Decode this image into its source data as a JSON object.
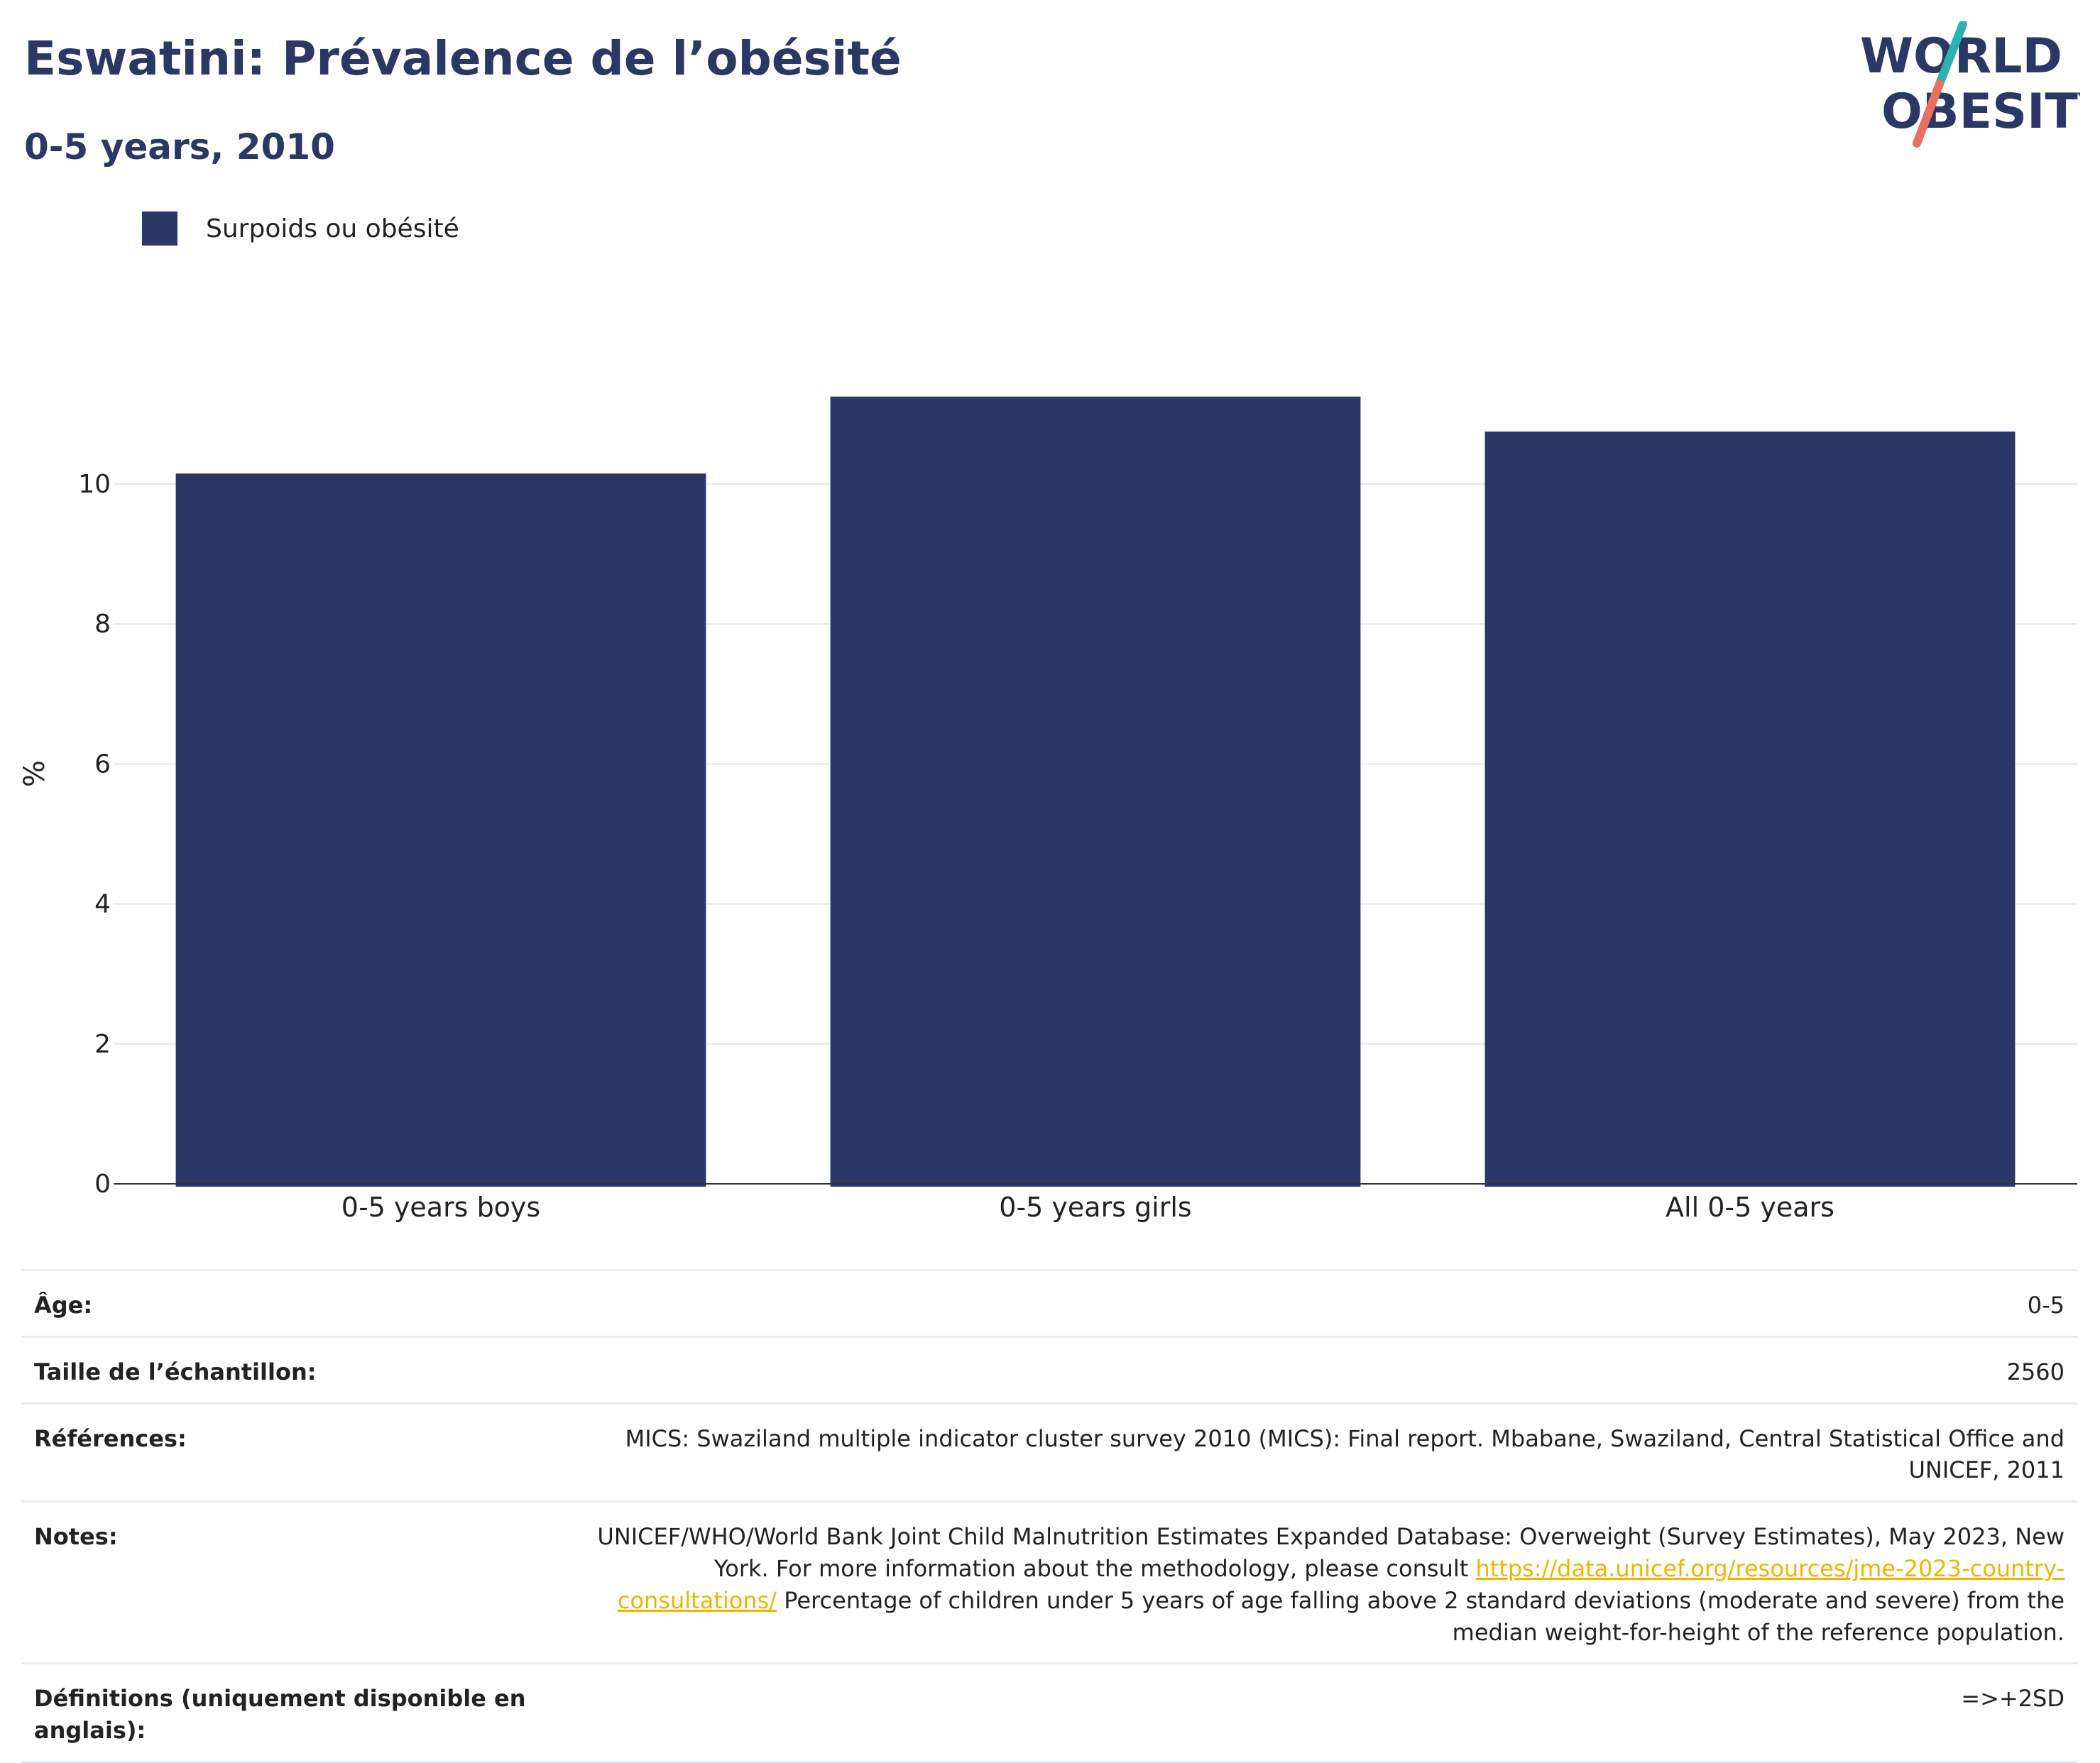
{
  "header": {
    "title": "Eswatini: Prévalence de l’obésité",
    "subtitle": "0-5 years, 2010"
  },
  "logo": {
    "line1": "WORLD",
    "line2": "OBESITY",
    "name": "world-obesity-logo"
  },
  "colors": {
    "bar": "#2b3764",
    "title": "#2b3764",
    "link": "#f0b400",
    "logo_teal": "#2bb3b1",
    "logo_coral": "#e8705c"
  },
  "chart_data": {
    "type": "bar",
    "categories": [
      "0-5 years boys",
      "0-5 years girls",
      "All 0-5 years"
    ],
    "series": [
      {
        "name": "Surpoids ou obésité",
        "values": [
          10.15,
          11.25,
          10.75
        ]
      }
    ],
    "ylabel": "%",
    "ylim": [
      0,
      11.6
    ],
    "yticks": [
      0,
      2,
      4,
      6,
      8,
      10
    ],
    "grid": true,
    "legend": "top-left"
  },
  "info": {
    "rows": [
      {
        "key": "Âge:",
        "value": "0-5"
      },
      {
        "key": "Taille de l’échantillon:",
        "value": "2560"
      },
      {
        "key": "Références:",
        "value": "MICS: Swaziland multiple indicator cluster survey 2010 (MICS): Final report. Mbabane, Swaziland, Central Statistical Office and UNICEF, 2011"
      },
      {
        "key": "Notes:",
        "value_before": "UNICEF/WHO/World Bank Joint Child Malnutrition Estimates Expanded Database: Overweight (Survey Estimates), May 2023, New York. For more information about the methodology, please consult ",
        "link": "https://data.unicef.org/resources/jme-2023-country-consultations/",
        "value_after": " Percentage of children under 5 years of age falling above 2 standard deviations (moderate and severe) from the median weight-for-height of the reference population."
      },
      {
        "key": "Définitions (uniquement disponible en anglais):",
        "value": "=>+2SD"
      }
    ]
  }
}
